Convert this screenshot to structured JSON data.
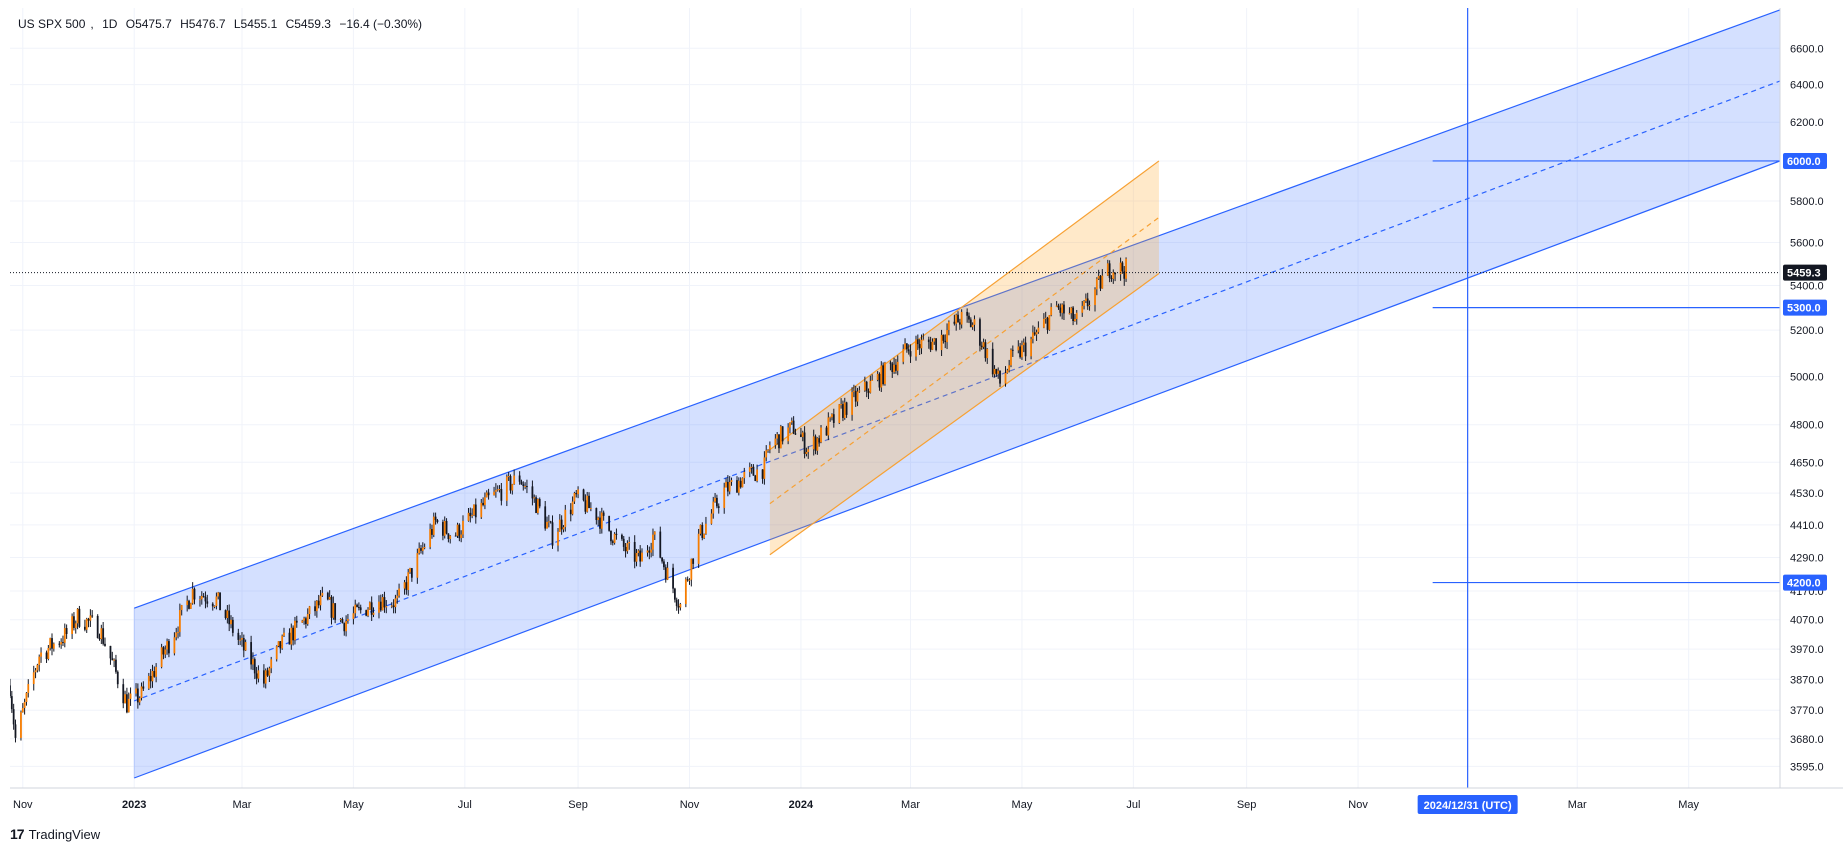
{
  "header": {
    "symbol": "US SPX 500",
    "interval": "1D",
    "open": "O5475.7",
    "high": "H5476.7",
    "low": "L5455.1",
    "close": "C5459.3",
    "change": "−16.4 (−0.30%)"
  },
  "brand": {
    "logo": "17",
    "name": "TradingView"
  },
  "colors": {
    "up": "#131722",
    "down": "#131722",
    "accent_up": "#f57c00",
    "channel_blue": "#2962ff",
    "channel_fill": "rgba(41,98,255,0.20)",
    "channel_orange": "#f7a134",
    "orange_fill": "rgba(255,167,38,0.25)",
    "grid": "#f0f3fa"
  },
  "chart_data": {
    "type": "candlestick",
    "title": "",
    "y_scale": "log",
    "ylim": [
      3560,
      6800
    ],
    "y_ticks": [
      "6600.0",
      "6400.0",
      "6200.0",
      "6000.0",
      "5800.0",
      "5600.0",
      "5400.0",
      "5200.0",
      "5000.0",
      "4800.0",
      "4650.0",
      "4530.0",
      "4410.0",
      "4290.0",
      "4170.0",
      "4070.0",
      "3970.0",
      "3870.0",
      "3770.0",
      "3680.0",
      "3595.0"
    ],
    "x_ticks": [
      "Nov",
      "2023",
      "Mar",
      "May",
      "Jul",
      "Sep",
      "Nov",
      "2024",
      "Mar",
      "May",
      "Jul",
      "Sep",
      "Nov",
      "Mar",
      "May"
    ],
    "x_range": [
      "2022-10-25",
      "2025-06-20"
    ],
    "last_price": {
      "label": "5459.3",
      "value": 5459.3
    },
    "price_levels": [
      {
        "label": "6000.0",
        "value": 6000
      },
      {
        "label": "5300.0",
        "value": 5300
      },
      {
        "label": "4200.0",
        "value": 4200
      }
    ],
    "vertical_marker": {
      "date": "2024-12-31",
      "label": "2024/12/31 (UTC)"
    },
    "blue_channel": {
      "upper": [
        [
          "2023-01-01",
          4110
        ],
        [
          "2025-05-20",
          6700
        ]
      ],
      "mid": [
        [
          "2023-01-01",
          3800
        ],
        [
          "2025-06-20",
          6420
        ]
      ],
      "lower": [
        [
          "2023-01-01",
          3560
        ],
        [
          "2025-06-20",
          6000
        ]
      ]
    },
    "orange_channel": {
      "upper": [
        [
          "2023-12-15",
          4700
        ],
        [
          "2024-07-15",
          6000
        ]
      ],
      "mid": [
        [
          "2023-12-15",
          4490
        ],
        [
          "2024-07-15",
          5720
        ]
      ],
      "lower": [
        [
          "2023-12-15",
          4300
        ],
        [
          "2024-07-15",
          5455
        ]
      ]
    },
    "price_path": [
      [
        "2022-10-25",
        3850
      ],
      [
        "2022-10-28",
        3680
      ],
      [
        "2022-11-10",
        3950
      ],
      [
        "2022-11-25",
        4020
      ],
      [
        "2022-12-01",
        4080
      ],
      [
        "2022-12-13",
        4040
      ],
      [
        "2022-12-28",
        3790
      ],
      [
        "2023-01-05",
        3820
      ],
      [
        "2023-01-20",
        3990
      ],
      [
        "2023-02-02",
        4170
      ],
      [
        "2023-02-15",
        4140
      ],
      [
        "2023-02-28",
        3990
      ],
      [
        "2023-03-13",
        3860
      ],
      [
        "2023-03-22",
        3980
      ],
      [
        "2023-04-15",
        4140
      ],
      [
        "2023-04-25",
        4060
      ],
      [
        "2023-05-15",
        4140
      ],
      [
        "2023-05-25",
        4130
      ],
      [
        "2023-06-15",
        4420
      ],
      [
        "2023-06-25",
        4370
      ],
      [
        "2023-07-15",
        4510
      ],
      [
        "2023-07-31",
        4590
      ],
      [
        "2023-08-10",
        4480
      ],
      [
        "2023-08-18",
        4370
      ],
      [
        "2023-08-31",
        4510
      ],
      [
        "2023-09-10",
        4460
      ],
      [
        "2023-09-25",
        4330
      ],
      [
        "2023-10-05",
        4280
      ],
      [
        "2023-10-12",
        4370
      ],
      [
        "2023-10-20",
        4230
      ],
      [
        "2023-10-27",
        4120
      ],
      [
        "2023-11-05",
        4350
      ],
      [
        "2023-11-20",
        4540
      ],
      [
        "2023-12-01",
        4590
      ],
      [
        "2023-12-12",
        4630
      ],
      [
        "2023-12-15",
        4720
      ],
      [
        "2023-12-28",
        4790
      ],
      [
        "2024-01-05",
        4700
      ],
      [
        "2024-01-25",
        4870
      ],
      [
        "2024-02-15",
        5010
      ],
      [
        "2024-03-01",
        5130
      ],
      [
        "2024-03-15",
        5150
      ],
      [
        "2024-03-28",
        5250
      ],
      [
        "2024-04-05",
        5220
      ],
      [
        "2024-04-19",
        4970
      ],
      [
        "2024-04-25",
        5070
      ],
      [
        "2024-05-05",
        5140
      ],
      [
        "2024-05-20",
        5300
      ],
      [
        "2024-05-31",
        5240
      ],
      [
        "2024-06-12",
        5400
      ],
      [
        "2024-06-18",
        5480
      ],
      [
        "2024-06-27",
        5475
      ]
    ]
  }
}
